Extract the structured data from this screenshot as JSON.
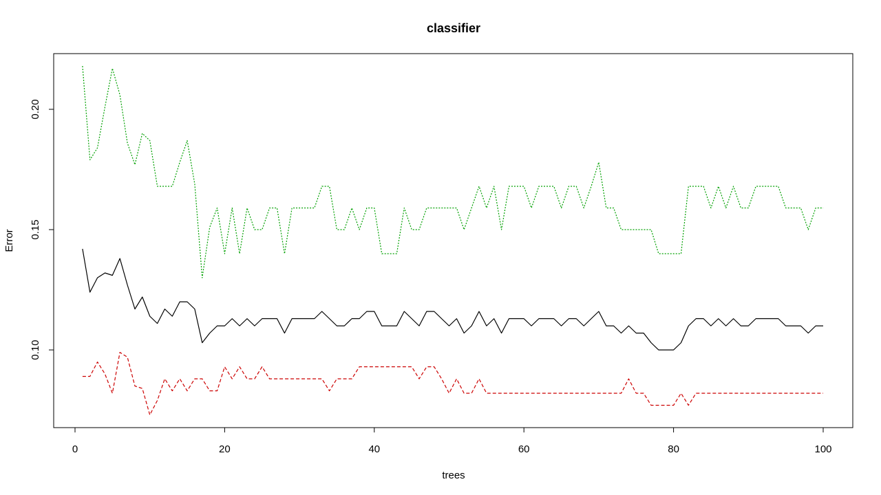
{
  "chart_data": {
    "type": "line",
    "title": "classifier",
    "xlabel": "trees",
    "ylabel": "Error",
    "xlim": [
      0,
      100
    ],
    "ylim": [
      0.07,
      0.22
    ],
    "x_ticks": [
      0,
      20,
      40,
      60,
      80,
      100
    ],
    "y_ticks": [
      0.1,
      0.15,
      0.2
    ],
    "x_tick_labels": [
      "0",
      "20",
      "40",
      "60",
      "80",
      "100"
    ],
    "y_tick_labels": [
      "0.10",
      "0.15",
      "0.20"
    ],
    "grid": false,
    "legend": "none",
    "x": [
      1,
      2,
      3,
      4,
      5,
      6,
      7,
      8,
      9,
      10,
      11,
      12,
      13,
      14,
      15,
      16,
      17,
      18,
      19,
      20,
      21,
      22,
      23,
      24,
      25,
      26,
      27,
      28,
      29,
      30,
      31,
      32,
      33,
      34,
      35,
      36,
      37,
      38,
      39,
      40,
      41,
      42,
      43,
      44,
      45,
      46,
      47,
      48,
      49,
      50,
      51,
      52,
      53,
      54,
      55,
      56,
      57,
      58,
      59,
      60,
      61,
      62,
      63,
      64,
      65,
      66,
      67,
      68,
      69,
      70,
      71,
      72,
      73,
      74,
      75,
      76,
      77,
      78,
      79,
      80,
      81,
      82,
      83,
      84,
      85,
      86,
      87,
      88,
      89,
      90,
      91,
      92,
      93,
      94,
      95,
      96,
      97,
      98,
      99,
      100
    ],
    "series": [
      {
        "color": "#000000",
        "dash": "solid",
        "values": [
          0.142,
          0.124,
          0.13,
          0.132,
          0.131,
          0.138,
          0.127,
          0.117,
          0.122,
          0.114,
          0.111,
          0.117,
          0.114,
          0.12,
          0.12,
          0.117,
          0.103,
          0.107,
          0.11,
          0.11,
          0.113,
          0.11,
          0.113,
          0.11,
          0.113,
          0.113,
          0.113,
          0.107,
          0.113,
          0.113,
          0.113,
          0.113,
          0.116,
          0.113,
          0.11,
          0.11,
          0.113,
          0.113,
          0.116,
          0.116,
          0.11,
          0.11,
          0.11,
          0.116,
          0.113,
          0.11,
          0.116,
          0.116,
          0.113,
          0.11,
          0.113,
          0.107,
          0.11,
          0.116,
          0.11,
          0.113,
          0.107,
          0.113,
          0.113,
          0.113,
          0.11,
          0.113,
          0.113,
          0.113,
          0.11,
          0.113,
          0.113,
          0.11,
          0.113,
          0.116,
          0.11,
          0.11,
          0.107,
          0.11,
          0.107,
          0.107,
          0.103,
          0.1,
          0.1,
          0.1,
          0.103,
          0.11,
          0.113,
          0.113,
          0.11,
          0.113,
          0.11,
          0.113,
          0.11,
          0.11,
          0.113,
          0.113,
          0.113,
          0.113,
          0.11,
          0.11,
          0.11,
          0.107,
          0.11,
          0.11
        ]
      },
      {
        "color": "#cc0000",
        "dash": "dashed",
        "values": [
          0.089,
          0.089,
          0.095,
          0.09,
          0.082,
          0.099,
          0.097,
          0.085,
          0.084,
          0.073,
          0.079,
          0.088,
          0.083,
          0.088,
          0.083,
          0.088,
          0.088,
          0.083,
          0.083,
          0.093,
          0.088,
          0.093,
          0.088,
          0.088,
          0.093,
          0.088,
          0.088,
          0.088,
          0.088,
          0.088,
          0.088,
          0.088,
          0.088,
          0.083,
          0.088,
          0.088,
          0.088,
          0.093,
          0.093,
          0.093,
          0.093,
          0.093,
          0.093,
          0.093,
          0.093,
          0.088,
          0.093,
          0.093,
          0.088,
          0.082,
          0.088,
          0.082,
          0.082,
          0.088,
          0.082,
          0.082,
          0.082,
          0.082,
          0.082,
          0.082,
          0.082,
          0.082,
          0.082,
          0.082,
          0.082,
          0.082,
          0.082,
          0.082,
          0.082,
          0.082,
          0.082,
          0.082,
          0.082,
          0.088,
          0.082,
          0.082,
          0.077,
          0.077,
          0.077,
          0.077,
          0.082,
          0.077,
          0.082,
          0.082,
          0.082,
          0.082,
          0.082,
          0.082,
          0.082,
          0.082,
          0.082,
          0.082,
          0.082,
          0.082,
          0.082,
          0.082,
          0.082,
          0.082,
          0.082,
          0.082
        ]
      },
      {
        "color": "#00a000",
        "dash": "dotted",
        "values": [
          0.218,
          0.179,
          0.184,
          0.201,
          0.217,
          0.206,
          0.186,
          0.177,
          0.19,
          0.187,
          0.168,
          0.168,
          0.168,
          0.178,
          0.187,
          0.169,
          0.13,
          0.151,
          0.159,
          0.14,
          0.159,
          0.14,
          0.159,
          0.15,
          0.15,
          0.159,
          0.159,
          0.14,
          0.159,
          0.159,
          0.159,
          0.159,
          0.168,
          0.168,
          0.15,
          0.15,
          0.159,
          0.15,
          0.159,
          0.159,
          0.14,
          0.14,
          0.14,
          0.159,
          0.15,
          0.15,
          0.159,
          0.159,
          0.159,
          0.159,
          0.159,
          0.15,
          0.159,
          0.168,
          0.159,
          0.168,
          0.15,
          0.168,
          0.168,
          0.168,
          0.159,
          0.168,
          0.168,
          0.168,
          0.159,
          0.168,
          0.168,
          0.159,
          0.168,
          0.178,
          0.159,
          0.159,
          0.15,
          0.15,
          0.15,
          0.15,
          0.15,
          0.14,
          0.14,
          0.14,
          0.14,
          0.168,
          0.168,
          0.168,
          0.159,
          0.168,
          0.159,
          0.168,
          0.159,
          0.159,
          0.168,
          0.168,
          0.168,
          0.168,
          0.159,
          0.159,
          0.159,
          0.15,
          0.159,
          0.159
        ]
      }
    ]
  }
}
